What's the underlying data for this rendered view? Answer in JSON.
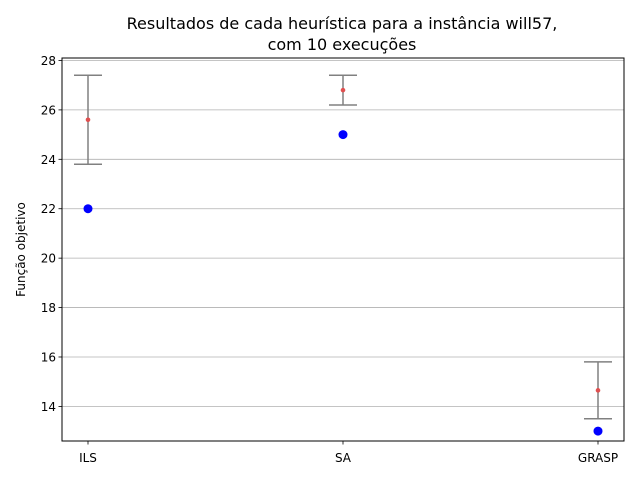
{
  "chart_data": {
    "type": "scatter",
    "title_lines": [
      "Resultados de cada heurística para a instância will57,",
      "com 10 execuções"
    ],
    "xlabel": "",
    "ylabel": "Função objetivo",
    "categories": [
      "ILS",
      "SA",
      "GRASP"
    ],
    "ylim": [
      12.6,
      28.1
    ],
    "yticks": [
      14,
      16,
      18,
      20,
      22,
      24,
      26,
      28
    ],
    "grid": "y",
    "series": [
      {
        "kind": "best-points",
        "color": "#0000ff",
        "values": [
          22,
          25,
          13
        ]
      },
      {
        "kind": "mean-with-error",
        "color": "#e05050",
        "errorbar_color": "#808080",
        "values": [
          25.6,
          26.8,
          14.65
        ],
        "lower": [
          23.8,
          26.2,
          13.5
        ],
        "upper": [
          27.4,
          27.4,
          15.8
        ]
      }
    ]
  }
}
